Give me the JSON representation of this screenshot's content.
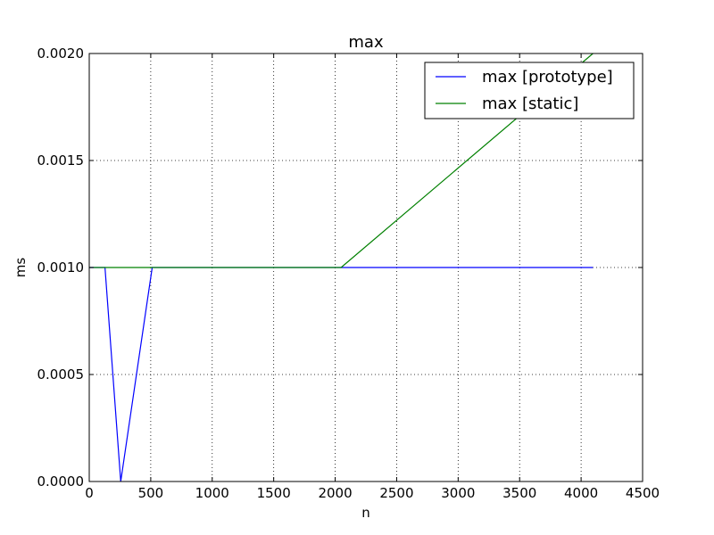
{
  "chart_data": {
    "type": "line",
    "title": "max",
    "xlabel": "n",
    "ylabel": "ms",
    "xlim": [
      0,
      4500
    ],
    "ylim": [
      0,
      0.002
    ],
    "xticks": [
      0,
      500,
      1000,
      1500,
      2000,
      2500,
      3000,
      3500,
      4000,
      4500
    ],
    "xtick_labels": [
      "0",
      "500",
      "1000",
      "1500",
      "2000",
      "2500",
      "3000",
      "3500",
      "4000",
      "4500"
    ],
    "yticks": [
      0,
      0.0005,
      0.001,
      0.0015,
      0.002
    ],
    "ytick_labels": [
      "0.0000",
      "0.0005",
      "0.0010",
      "0.0015",
      "0.0020"
    ],
    "grid": true,
    "legend_position": "top-right",
    "series": [
      {
        "name": "max [prototype]",
        "color": "#0000ff",
        "points": [
          [
            0,
            0.001
          ],
          [
            128,
            0.001
          ],
          [
            256,
            0.0
          ],
          [
            512,
            0.001
          ],
          [
            1024,
            0.001
          ],
          [
            2048,
            0.001
          ],
          [
            4096,
            0.001
          ]
        ]
      },
      {
        "name": "max [static]",
        "color": "#008000",
        "points": [
          [
            0,
            0.001
          ],
          [
            128,
            0.001
          ],
          [
            256,
            0.001
          ],
          [
            512,
            0.001
          ],
          [
            1024,
            0.001
          ],
          [
            2048,
            0.001
          ],
          [
            4096,
            0.002
          ]
        ]
      }
    ]
  }
}
